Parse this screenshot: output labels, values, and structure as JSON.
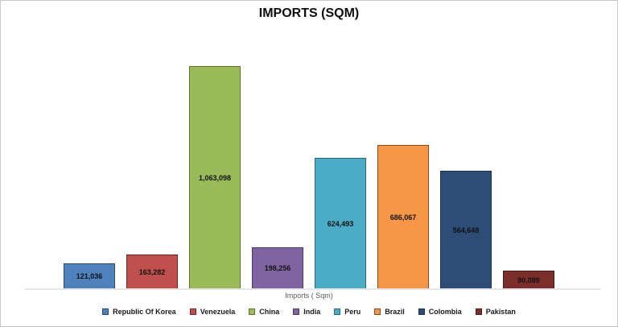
{
  "chart_data": {
    "type": "bar",
    "title": "IMPORTS (SQM)",
    "xlabel": "Imports ( Sqm)",
    "ylabel": "",
    "categories": [
      "Republic Of Korea",
      "Venezuela",
      "China",
      "India",
      "Peru",
      "Brazil",
      "Colombia",
      "Pakistan"
    ],
    "values": [
      121036,
      163282,
      1063098,
      198256,
      624493,
      686067,
      564648,
      90089
    ],
    "value_labels": [
      "121,036",
      "163,282",
      "1,063,098",
      "198,256",
      "624,493",
      "686,067",
      "564,648",
      "90,089"
    ],
    "colors": [
      "#4F81BD",
      "#C0504D",
      "#9BBB59",
      "#8064A2",
      "#4BACC6",
      "#F79646",
      "#2E4D76",
      "#7B2E2A"
    ],
    "border_colors": [
      "#27496F",
      "#6E2826",
      "#5E7530",
      "#4A3B69",
      "#2B6577",
      "#8C4B15",
      "#1B3350",
      "#471A18"
    ],
    "ylim": [
      0,
      1100000
    ],
    "grid": false,
    "legend_position": "bottom",
    "baseline_color": "#e6e6e6",
    "value_label_color": "#111111",
    "title_color": "#0d0d0d"
  }
}
